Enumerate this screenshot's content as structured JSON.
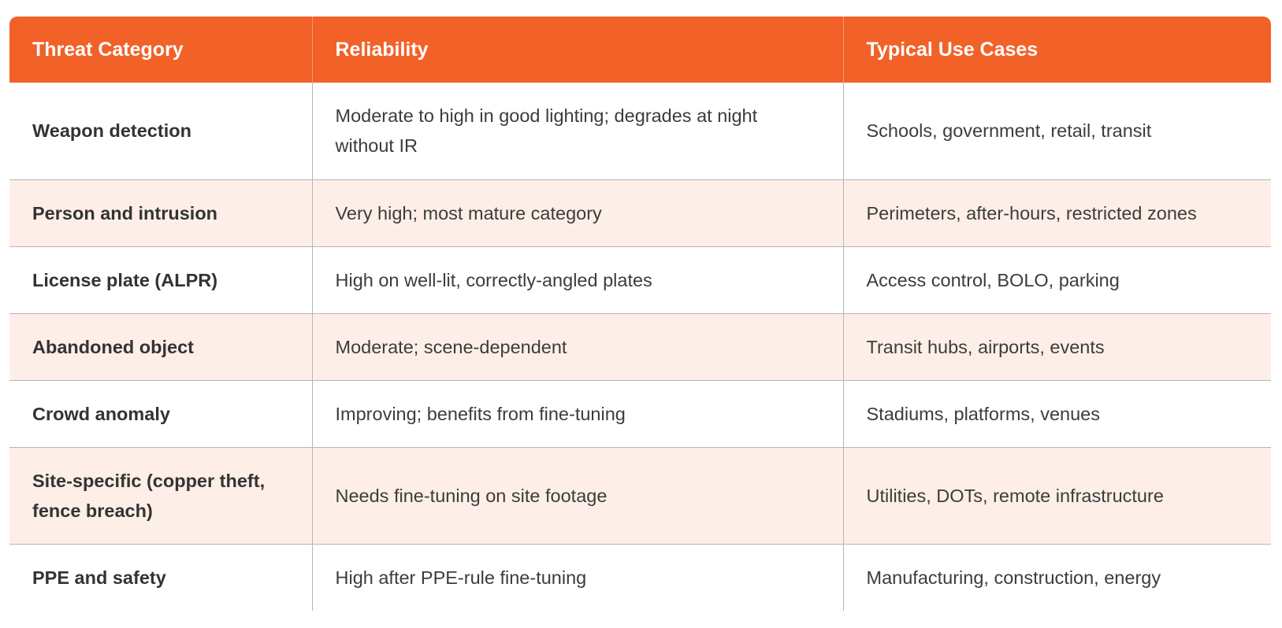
{
  "table": {
    "headers": [
      "Threat Category",
      "Reliability",
      "Typical Use Cases"
    ],
    "rows": [
      [
        "Weapon detection",
        "Moderate to high in good lighting; degrades at night without IR",
        "Schools, government, retail, transit"
      ],
      [
        "Person and intrusion",
        "Very high; most mature category",
        "Perimeters, after-hours, restricted zones"
      ],
      [
        "License plate (ALPR)",
        "High on well-lit, correctly-angled plates",
        "Access control, BOLO, parking"
      ],
      [
        "Abandoned object",
        "Moderate; scene-dependent",
        "Transit hubs, airports, events"
      ],
      [
        "Crowd anomaly",
        "Improving; benefits from fine-tuning",
        "Stadiums, platforms, venues"
      ],
      [
        "Site-specific (copper theft, fence breach)",
        "Needs fine-tuning on site footage",
        "Utilities, DOTs, remote infrastructure"
      ],
      [
        "PPE and safety",
        "High after PPE-rule fine-tuning",
        "Manufacturing, construction, energy"
      ]
    ]
  },
  "colors": {
    "header_bg": "#f26128",
    "stripe_bg": "#fdefe7"
  }
}
